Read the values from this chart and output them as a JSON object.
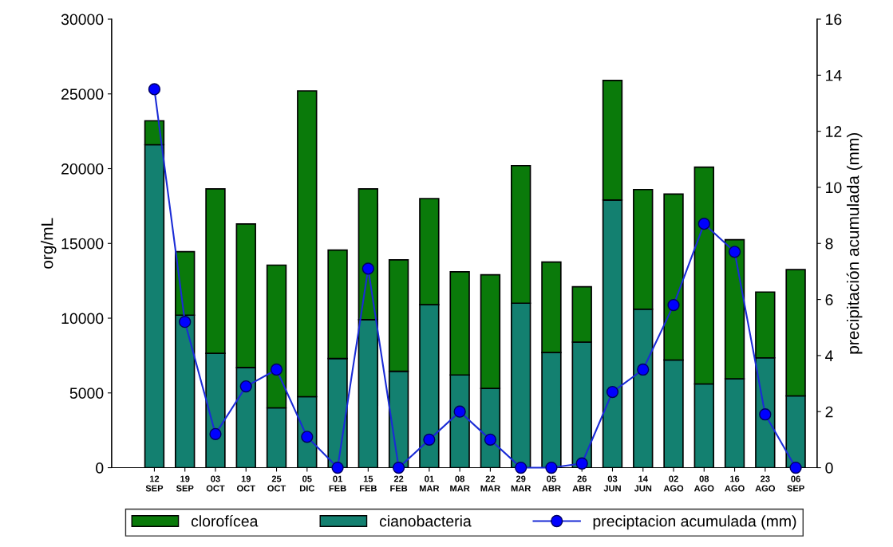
{
  "chart_data": {
    "type": "bar",
    "stacked": true,
    "categories": [
      "12\nSEP",
      "19\nSEP",
      "03\nOCT",
      "19\nOCT",
      "25\nOCT",
      "05\nDIC",
      "01\nFEB",
      "15\nFEB",
      "22\nFEB",
      "01\nMAR",
      "08\nMAR",
      "22\nMAR",
      "29\nMAR",
      "05\nABR",
      "26\nABR",
      "03\nJUN",
      "14\nJUN",
      "02\nAGO",
      "08\nAGO",
      "16\nAGO",
      "23\nAGO",
      "06\nSEP"
    ],
    "series": [
      {
        "name": "cianobacteria",
        "color": "#138070",
        "values": [
          21600,
          10200,
          7650,
          6700,
          4000,
          4750,
          7300,
          9900,
          6450,
          10900,
          6200,
          5300,
          11000,
          7700,
          8400,
          17900,
          10600,
          7200,
          5600,
          5950,
          7350,
          4800
        ]
      },
      {
        "name": "clorofícea",
        "color": "#0a7a0a",
        "values": [
          1600,
          4250,
          11000,
          9600,
          9550,
          20450,
          7250,
          8750,
          7450,
          7100,
          6900,
          7600,
          9200,
          6050,
          3700,
          8000,
          8000,
          11100,
          14500,
          9300,
          4400,
          8450
        ]
      },
      {
        "name": "preciptacion acumulada (mm)",
        "type": "line",
        "axis": "y2",
        "color": "#1a2bd6",
        "marker": "circle",
        "values": [
          13.5,
          5.2,
          1.2,
          2.9,
          3.5,
          1.1,
          0,
          7.1,
          0,
          1.0,
          2.0,
          1.0,
          0,
          0,
          0.15,
          2.7,
          3.5,
          5.8,
          8.7,
          7.7,
          1.9,
          0
        ]
      }
    ],
    "ylabel": "org/mL",
    "y2label": "precipitación acumulada (mm)",
    "ylim": [
      0,
      30000
    ],
    "yticks": [
      0,
      5000,
      10000,
      15000,
      20000,
      25000,
      30000
    ],
    "y2lim": [
      0,
      16
    ],
    "y2ticks": [
      0,
      2,
      4,
      6,
      8,
      10,
      12,
      14,
      16
    ],
    "grid": false,
    "legend": "bottom"
  }
}
